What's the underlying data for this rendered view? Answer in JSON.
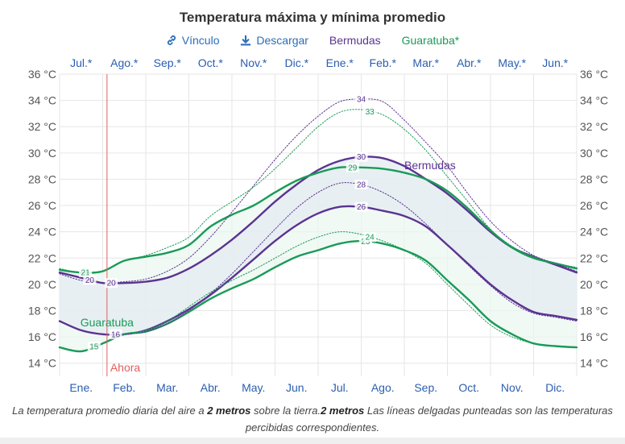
{
  "header": {
    "title": "Temperatura máxima y mínima promedio",
    "link_label": "Vínculo",
    "download_label": "Descargar",
    "bermudas_label": "Bermudas",
    "guaratuba_label": "Guaratuba*"
  },
  "caption": {
    "part1": "La temperatura promedio diaria del aire a ",
    "bold1": "2 metros",
    "part2": " sobre la tierra.",
    "bold2": "2 metros",
    "part3": " Las líneas delgadas punteadas son las temperaturas percibidas correspondientes."
  },
  "colors": {
    "bermudas": "#5b3391",
    "guaratuba": "#1a9a58",
    "now": "#e06060",
    "month_text": "#2a5eb0"
  },
  "chart_data": {
    "type": "line",
    "title": "Temperatura máxima y mínima promedio",
    "xlabel": "",
    "ylabel": "°C",
    "ylim": [
      13,
      36
    ],
    "y_ticks": [
      14,
      16,
      18,
      20,
      22,
      24,
      26,
      28,
      30,
      32,
      34,
      36
    ],
    "y_tick_labels": [
      "14 °C",
      "16 °C",
      "18 °C",
      "20 °C",
      "22 °C",
      "24 °C",
      "26 °C",
      "28 °C",
      "30 °C",
      "32 °C",
      "34 °C",
      "36 °C"
    ],
    "bottom_months": [
      "Ene.",
      "Feb.",
      "Mar.",
      "Abr.",
      "May.",
      "Jun.",
      "Jul.",
      "Ago.",
      "Sep.",
      "Oct.",
      "Nov.",
      "Dic."
    ],
    "top_months": [
      "Jul.*",
      "Ago.*",
      "Sep.*",
      "Oct.*",
      "Nov.*",
      "Dic.*",
      "Ene.*",
      "Feb.*",
      "Mar.*",
      "Abr.*",
      "May.*",
      "Jun.*"
    ],
    "now_label": "Ahora",
    "now_month": 1.1,
    "x": [
      0,
      0.5,
      1,
      1.5,
      2,
      2.5,
      3,
      3.5,
      4,
      4.5,
      5,
      5.5,
      6,
      6.5,
      7,
      7.5,
      8,
      8.5,
      9,
      9.5,
      10,
      10.5,
      11,
      11.5,
      12
    ],
    "series": [
      {
        "name": "Bermudas máx.",
        "location": "Bermudas",
        "style": "solid",
        "values": [
          20.9,
          20.5,
          20.1,
          20.1,
          20.2,
          20.5,
          21.2,
          22.2,
          23.4,
          24.8,
          26.3,
          27.6,
          28.7,
          29.4,
          29.7,
          29.6,
          29.0,
          28.0,
          26.9,
          25.5,
          24.0,
          22.8,
          22.1,
          21.5,
          20.9
        ]
      },
      {
        "name": "Bermudas mín.",
        "location": "Bermudas",
        "style": "solid",
        "values": [
          17.2,
          16.5,
          16.2,
          16.2,
          16.5,
          17.2,
          18.1,
          19.2,
          20.5,
          21.9,
          23.3,
          24.5,
          25.4,
          25.9,
          25.9,
          25.6,
          25.2,
          24.4,
          23.0,
          21.5,
          20.0,
          18.8,
          17.9,
          17.6,
          17.3
        ]
      },
      {
        "name": "Guaratuba máx.",
        "location": "Guaratuba",
        "style": "solid",
        "values": [
          21.1,
          20.9,
          21.0,
          21.8,
          22.1,
          22.4,
          23.0,
          24.4,
          25.3,
          26.0,
          27.0,
          27.9,
          28.5,
          28.9,
          28.9,
          28.8,
          28.5,
          28.0,
          27.1,
          25.7,
          24.1,
          22.8,
          22.0,
          21.6,
          21.2
        ]
      },
      {
        "name": "Guaratuba mín.",
        "location": "Guaratuba",
        "style": "solid",
        "values": [
          15.2,
          14.9,
          15.5,
          16.2,
          16.4,
          17.0,
          17.9,
          18.9,
          19.7,
          20.4,
          21.3,
          22.1,
          22.6,
          23.1,
          23.3,
          23.1,
          22.6,
          21.8,
          20.3,
          18.8,
          17.2,
          16.2,
          15.5,
          15.3,
          15.2
        ]
      },
      {
        "name": "Bermudas máx. percibida",
        "location": "Bermudas",
        "style": "dotted",
        "values": [
          20.8,
          20.3,
          20.1,
          20.2,
          20.4,
          21.0,
          22.0,
          23.6,
          25.5,
          27.5,
          29.5,
          31.3,
          32.8,
          33.9,
          34.1,
          33.9,
          32.5,
          30.8,
          29.0,
          26.8,
          24.8,
          23.3,
          22.2,
          21.6,
          21.0
        ]
      },
      {
        "name": "Bermudas mín. percibida",
        "location": "Bermudas",
        "style": "dotted",
        "values": [
          17.2,
          16.5,
          16.2,
          16.2,
          16.4,
          17.0,
          18.0,
          19.3,
          20.8,
          22.5,
          24.2,
          25.8,
          27.0,
          27.7,
          27.6,
          27.0,
          26.0,
          24.6,
          23.0,
          21.4,
          19.9,
          18.6,
          17.8,
          17.5,
          17.2
        ]
      },
      {
        "name": "Guaratuba máx. percibida",
        "location": "Guaratuba",
        "style": "dotted",
        "values": [
          21.2,
          20.9,
          21.0,
          21.8,
          22.2,
          22.8,
          23.6,
          25.2,
          26.3,
          27.4,
          28.8,
          30.4,
          32.0,
          33.1,
          33.3,
          32.9,
          31.8,
          30.2,
          28.2,
          26.2,
          24.2,
          22.9,
          22.1,
          21.6,
          21.3
        ]
      },
      {
        "name": "Guaratuba mín. percibida",
        "location": "Guaratuba",
        "style": "dotted",
        "values": [
          15.2,
          14.9,
          15.5,
          16.2,
          16.5,
          17.2,
          18.3,
          19.4,
          20.3,
          21.1,
          22.0,
          22.9,
          23.6,
          24.0,
          23.8,
          23.3,
          22.6,
          21.6,
          20.0,
          18.4,
          16.9,
          16.0,
          15.5,
          15.3,
          15.2
        ]
      }
    ],
    "annotations": [
      {
        "series": 0,
        "month": 1.2,
        "text": "20"
      },
      {
        "series": 0,
        "month": 7.0,
        "text": "30"
      },
      {
        "series": 1,
        "month": 1.3,
        "text": "16"
      },
      {
        "series": 1,
        "month": 7.0,
        "text": "26"
      },
      {
        "series": 2,
        "month": 0.6,
        "text": "21"
      },
      {
        "series": 2,
        "month": 6.8,
        "text": "29"
      },
      {
        "series": 3,
        "month": 0.8,
        "text": "15"
      },
      {
        "series": 3,
        "month": 7.1,
        "text": "23"
      },
      {
        "series": 4,
        "month": 7.0,
        "text": "34"
      },
      {
        "series": 5,
        "month": 7.0,
        "text": "28"
      },
      {
        "series": 6,
        "month": 7.2,
        "text": "33"
      },
      {
        "series": 7,
        "month": 7.2,
        "text": "24"
      },
      {
        "series": 0,
        "month": 0.7,
        "text": "20"
      }
    ],
    "series_labels": [
      {
        "text": "Bermudas",
        "location": "Bermudas"
      },
      {
        "text": "Guaratuba",
        "location": "Guaratuba"
      }
    ],
    "grid": true
  }
}
